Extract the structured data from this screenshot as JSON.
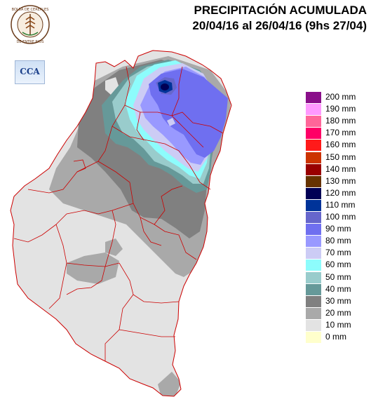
{
  "title": {
    "line1": "PRECIPITACIÓN ACUMULADA",
    "line2": "20/04/16 al 26/04/16 (9hs 27/04)"
  },
  "logo": {
    "ring_text_top": "BOLSA DE CEREALES",
    "ring_text_bottom": "DE ENTRE RIOS"
  },
  "cca_logo": {
    "text": "CCA"
  },
  "legend": [
    {
      "label": "200 mm",
      "color": "#8a0f8a"
    },
    {
      "label": "190 mm",
      "color": "#ff99ff"
    },
    {
      "label": "180 mm",
      "color": "#ff6699"
    },
    {
      "label": "170 mm",
      "color": "#ff0066"
    },
    {
      "label": "160 mm",
      "color": "#ff1a1a"
    },
    {
      "label": "150 mm",
      "color": "#cc3300"
    },
    {
      "label": "140 mm",
      "color": "#990000"
    },
    {
      "label": "130 mm",
      "color": "#663300"
    },
    {
      "label": "120 mm",
      "color": "#000055"
    },
    {
      "label": "110 mm",
      "color": "#003399"
    },
    {
      "label": "100 mm",
      "color": "#6666cc"
    },
    {
      "label": "90 mm",
      "color": "#6f6ff0"
    },
    {
      "label": "80 mm",
      "color": "#9999ff"
    },
    {
      "label": "70 mm",
      "color": "#ccccf5"
    },
    {
      "label": "60 mm",
      "color": "#8dfcfc"
    },
    {
      "label": "50 mm",
      "color": "#99cccc"
    },
    {
      "label": "40 mm",
      "color": "#669999"
    },
    {
      "label": "30 mm",
      "color": "#808080"
    },
    {
      "label": "20 mm",
      "color": "#a9a9a9"
    },
    {
      "label": "10 mm",
      "color": "#e3e3e3"
    },
    {
      "label": "0 mm",
      "color": "#ffffcc"
    }
  ]
}
